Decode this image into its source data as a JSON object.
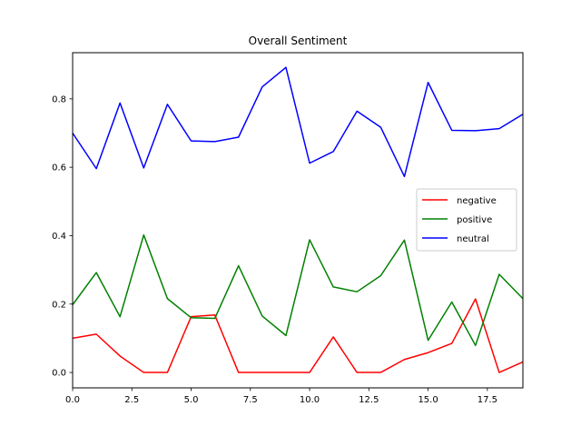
{
  "chart_data": {
    "type": "line",
    "title": "Overall Sentiment",
    "xlabel": "",
    "ylabel": "",
    "xlim": [
      0,
      19
    ],
    "ylim": [
      -0.045,
      0.935
    ],
    "grid": false,
    "legend_position": "center-right",
    "x": [
      0,
      1,
      2,
      3,
      4,
      5,
      6,
      7,
      8,
      9,
      10,
      11,
      12,
      13,
      14,
      15,
      16,
      17,
      18,
      19
    ],
    "x_ticks": [
      "0.0",
      "2.5",
      "5.0",
      "7.5",
      "10.0",
      "12.5",
      "15.0",
      "17.5"
    ],
    "x_tick_values": [
      0,
      2.5,
      5,
      7.5,
      10,
      12.5,
      15,
      17.5
    ],
    "y_ticks": [
      "0.0",
      "0.2",
      "0.4",
      "0.6",
      "0.8"
    ],
    "y_tick_values": [
      0,
      0.2,
      0.4,
      0.6,
      0.8
    ],
    "series": [
      {
        "name": "negative",
        "color": "#ff0000",
        "values": [
          0.1,
          0.112,
          0.048,
          0.0,
          0.0,
          0.163,
          0.168,
          0.0,
          0.0,
          0.0,
          0.0,
          0.104,
          0.0,
          0.0,
          0.038,
          0.058,
          0.085,
          0.215,
          0.0,
          0.031
        ]
      },
      {
        "name": "positive",
        "color": "#008000",
        "values": [
          0.198,
          0.292,
          0.163,
          0.402,
          0.216,
          0.16,
          0.158,
          0.312,
          0.165,
          0.108,
          0.388,
          0.25,
          0.236,
          0.283,
          0.387,
          0.094,
          0.206,
          0.079,
          0.287,
          0.216
        ]
      },
      {
        "name": "neutral",
        "color": "#0000ff",
        "values": [
          0.7,
          0.596,
          0.788,
          0.598,
          0.784,
          0.677,
          0.675,
          0.688,
          0.835,
          0.892,
          0.612,
          0.646,
          0.764,
          0.717,
          0.573,
          0.848,
          0.708,
          0.707,
          0.713,
          0.755
        ]
      }
    ]
  }
}
